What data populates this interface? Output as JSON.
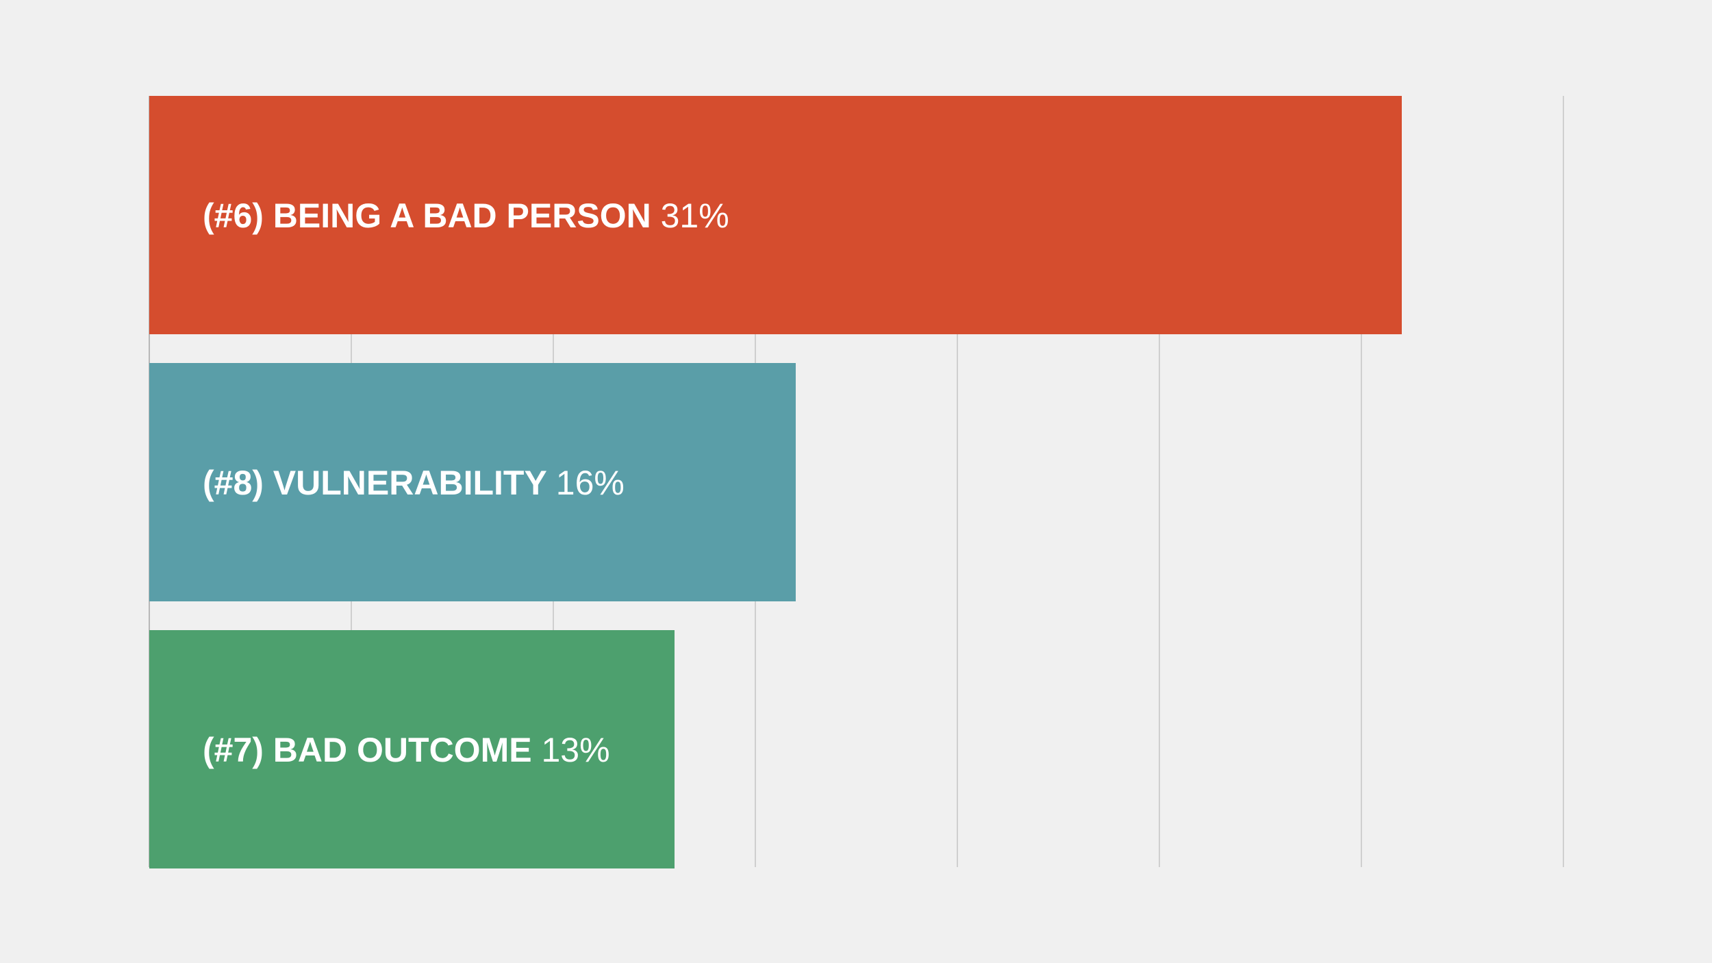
{
  "chart_data": {
    "type": "bar",
    "orientation": "horizontal",
    "title": "",
    "xlabel": "",
    "ylabel": "",
    "xlim": [
      0,
      35
    ],
    "grid": true,
    "categories": [
      "(#6) BEING A BAD PERSON",
      "(#8) VULNERABILITY",
      "(#7) BAD OUTCOME"
    ],
    "values": [
      31,
      16,
      13
    ],
    "value_labels": [
      "31%",
      "16%",
      "13%"
    ],
    "colors": [
      "#d54d2e",
      "#5a9ea8",
      "#4da06e"
    ]
  }
}
